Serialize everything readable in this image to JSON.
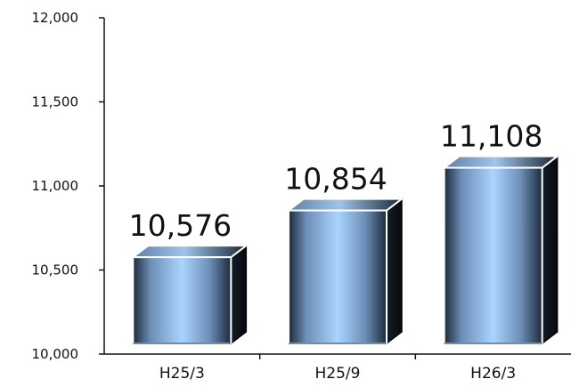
{
  "chart_data": {
    "type": "bar",
    "categories": [
      "H25/3",
      "H25/9",
      "H26/3"
    ],
    "values": [
      10576,
      10854,
      11108
    ],
    "value_labels": [
      "10,576",
      "10,854",
      "11,108"
    ],
    "y_tick_labels": [
      "10,000",
      "10,500",
      "11,000",
      "11,500",
      "12,000"
    ],
    "ylim": [
      10000,
      12000
    ],
    "title": "",
    "xlabel": "",
    "ylabel": "",
    "grid": false,
    "legend": "none",
    "bar_style": "3d-cylinder-gradient",
    "colors": {
      "bar_light": "#a9d4ff",
      "bar_mid": "#6d8fb7",
      "bar_dark": "#1c2a3b",
      "bar_side": "#07090d",
      "axis": "#111111"
    }
  }
}
